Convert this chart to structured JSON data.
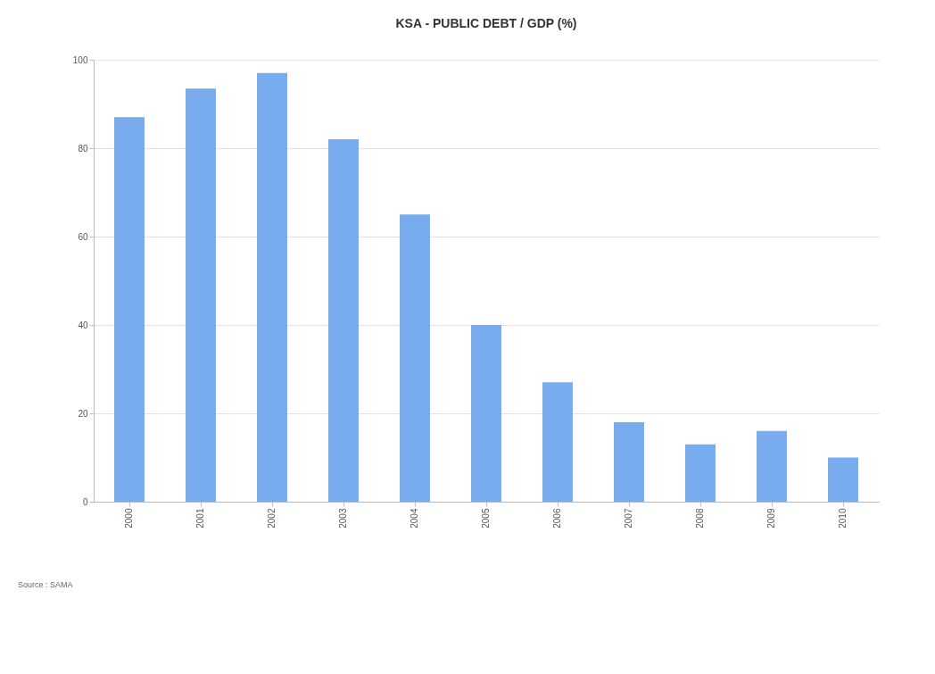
{
  "chart_data": {
    "type": "bar",
    "title": "KSA - PUBLIC DEBT / GDP (%)",
    "categories": [
      "2000",
      "2001",
      "2002",
      "2003",
      "2004",
      "2005",
      "2006",
      "2007",
      "2008",
      "2009",
      "2010"
    ],
    "values": [
      87,
      93.5,
      97,
      82,
      65,
      40,
      27,
      18,
      13,
      16,
      10
    ],
    "color": "#78acef",
    "ylim": [
      0,
      100
    ],
    "yticks": [
      0,
      20,
      40,
      60,
      80,
      100
    ],
    "grid": "y",
    "annotations": [
      "Source : SAMA"
    ]
  }
}
